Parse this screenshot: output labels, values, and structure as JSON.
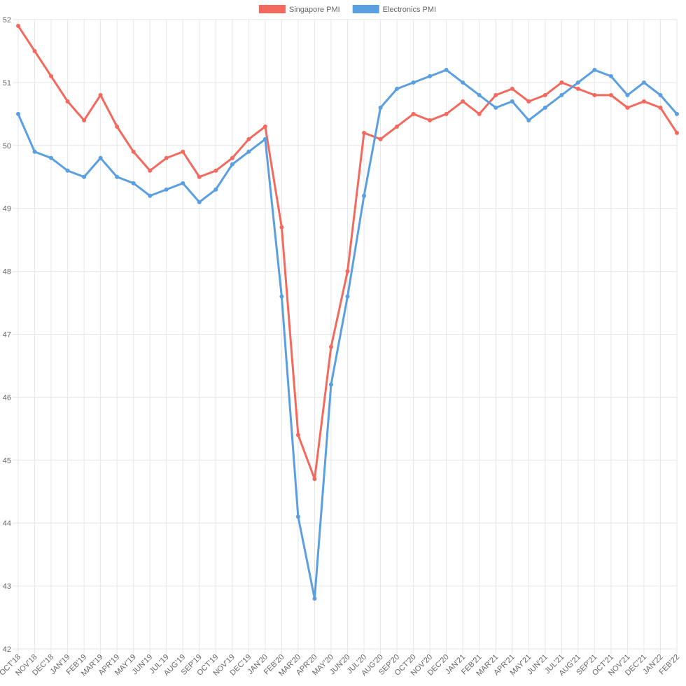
{
  "chart_data": {
    "type": "line",
    "categories": [
      "OCT'18",
      "NOV'18",
      "DEC'18",
      "JAN'19",
      "FEB'19",
      "MAR'19",
      "APR'19",
      "MAY'19",
      "JUN'19",
      "JUL'19",
      "AUG'19",
      "SEP'19",
      "OCT'19",
      "NOV'19",
      "DEC'19",
      "JAN'20",
      "FEB'20",
      "MAR'20",
      "APR'20",
      "MAY'20",
      "JUN'20",
      "JUL'20",
      "AUG'20",
      "SEP'20",
      "OCT'20",
      "NOV'20",
      "DEC'20",
      "JAN'21",
      "FEB'21",
      "MAR'21",
      "APR'21",
      "MAY'21",
      "JUN'21",
      "JUL'21",
      "AUG'21",
      "SEP'21",
      "OCT'21",
      "NOV'21",
      "DEC'21",
      "JAN'22",
      "FEB'22"
    ],
    "series": [
      {
        "name": "Singapore PMI",
        "color": "#f4695e",
        "values": [
          51.9,
          51.5,
          51.1,
          50.7,
          50.4,
          50.8,
          50.3,
          49.9,
          49.6,
          49.8,
          49.9,
          49.5,
          49.6,
          49.8,
          50.1,
          50.3,
          48.7,
          45.4,
          44.7,
          46.8,
          48.0,
          50.2,
          50.1,
          50.3,
          50.5,
          50.4,
          50.5,
          50.7,
          50.5,
          50.8,
          50.9,
          50.7,
          50.8,
          51.0,
          50.9,
          50.8,
          50.8,
          50.6,
          50.7,
          50.6,
          50.2
        ]
      },
      {
        "name": "Electronics PMI",
        "color": "#5a9fe0",
        "values": [
          50.5,
          49.9,
          49.8,
          49.6,
          49.5,
          49.8,
          49.5,
          49.4,
          49.2,
          49.3,
          49.4,
          49.1,
          49.3,
          49.7,
          49.9,
          50.1,
          47.6,
          44.1,
          42.8,
          46.2,
          47.6,
          49.2,
          50.6,
          50.9,
          51.0,
          51.1,
          51.2,
          51.0,
          50.8,
          50.6,
          50.7,
          50.4,
          50.6,
          50.8,
          51.0,
          51.2,
          51.1,
          50.8,
          51.0,
          50.8,
          50.5
        ]
      }
    ],
    "ylim": [
      42,
      52
    ],
    "yticks": [
      42,
      43,
      44,
      45,
      46,
      47,
      48,
      49,
      50,
      51,
      52
    ],
    "grid": true,
    "legend": "top"
  }
}
